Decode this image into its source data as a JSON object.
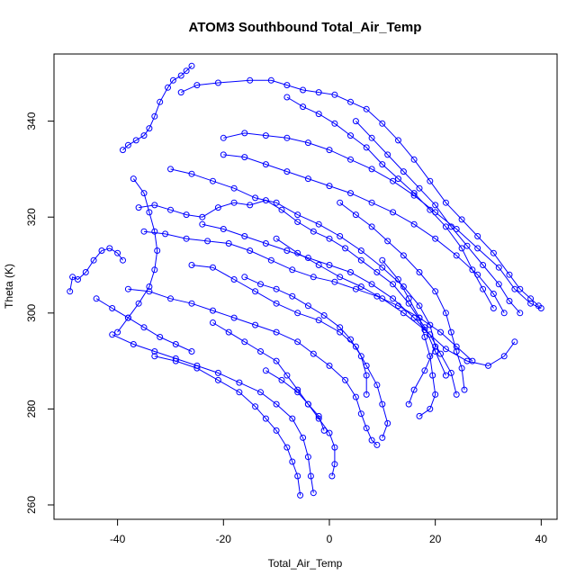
{
  "chart_data": {
    "type": "scatter",
    "title": "ATOM3 Southbound Total_Air_Temp",
    "xlabel": "Total_Air_Temp",
    "ylabel": "Theta (K)",
    "xlim": [
      -52,
      43
    ],
    "ylim": [
      257,
      354
    ],
    "x_ticks": [
      -40,
      -20,
      0,
      20,
      40
    ],
    "y_ticks": [
      260,
      280,
      300,
      320,
      340
    ],
    "grid": false,
    "legend": "none",
    "marker": "open-circle",
    "connected": true,
    "color": "#0000ff",
    "series": [
      {
        "points": [
          [
            -49,
            304.5
          ],
          [
            -48.5,
            307.5
          ],
          [
            -47.5,
            307
          ],
          [
            -46,
            308.5
          ],
          [
            -44.5,
            311
          ],
          [
            -43,
            313
          ],
          [
            -41.5,
            313.5
          ],
          [
            -40,
            312.5
          ],
          [
            -39,
            311
          ]
        ]
      },
      {
        "points": [
          [
            -39,
            334
          ],
          [
            -38,
            335
          ],
          [
            -36.5,
            336
          ],
          [
            -35,
            337
          ],
          [
            -34,
            338.5
          ],
          [
            -33,
            341
          ],
          [
            -32,
            344
          ],
          [
            -30.5,
            347
          ],
          [
            -29.5,
            348.5
          ],
          [
            -28,
            349.5
          ],
          [
            -27,
            350.5
          ],
          [
            -26,
            351.5
          ]
        ]
      },
      {
        "points": [
          [
            -28,
            346
          ],
          [
            -25,
            347.5
          ],
          [
            -21,
            348
          ],
          [
            -15,
            348.5
          ],
          [
            -11,
            348.5
          ],
          [
            -8,
            347.5
          ],
          [
            -5,
            346.5
          ],
          [
            -2,
            346
          ],
          [
            1,
            345.5
          ],
          [
            4,
            344
          ],
          [
            7,
            342.5
          ],
          [
            10,
            339.5
          ],
          [
            13,
            336
          ],
          [
            16,
            332
          ],
          [
            19,
            327.5
          ],
          [
            22,
            323
          ],
          [
            25,
            319.5
          ],
          [
            28,
            316
          ],
          [
            31,
            312.5
          ],
          [
            34,
            308
          ],
          [
            36,
            305
          ],
          [
            38,
            303
          ],
          [
            39.5,
            301.5
          ]
        ]
      },
      {
        "points": [
          [
            -20,
            336.5
          ],
          [
            -16,
            337.5
          ],
          [
            -12,
            337
          ],
          [
            -8,
            336.5
          ],
          [
            -4,
            335.5
          ],
          [
            0,
            334
          ],
          [
            4,
            332
          ],
          [
            8,
            330
          ],
          [
            12,
            327.5
          ],
          [
            16,
            324.5
          ],
          [
            20,
            321
          ],
          [
            24,
            317.5
          ],
          [
            28,
            313.5
          ],
          [
            32,
            309.5
          ],
          [
            35,
            305
          ],
          [
            38,
            302
          ],
          [
            40,
            301
          ]
        ]
      },
      {
        "points": [
          [
            -20,
            333
          ],
          [
            -16,
            332.5
          ],
          [
            -12,
            331
          ],
          [
            -8,
            329.5
          ],
          [
            -4,
            328
          ],
          [
            0,
            326.5
          ],
          [
            4,
            325
          ],
          [
            8,
            323
          ],
          [
            12,
            321
          ],
          [
            16,
            318.5
          ],
          [
            20,
            315.5
          ],
          [
            24,
            312
          ],
          [
            28,
            308
          ],
          [
            31,
            304
          ],
          [
            33,
            300
          ]
        ]
      },
      {
        "points": [
          [
            -36,
            322
          ],
          [
            -33,
            322.5
          ],
          [
            -30,
            321.5
          ],
          [
            -27,
            320.5
          ],
          [
            -24,
            320
          ],
          [
            -21,
            322
          ],
          [
            -18,
            323
          ],
          [
            -15,
            322.5
          ],
          [
            -12,
            323.5
          ],
          [
            -9,
            321.5
          ],
          [
            -6,
            319
          ],
          [
            -3,
            317
          ],
          [
            0,
            315.5
          ],
          [
            3,
            313.5
          ],
          [
            6,
            311
          ],
          [
            9,
            308.5
          ],
          [
            12,
            306
          ],
          [
            15,
            302
          ],
          [
            18,
            297
          ],
          [
            20,
            292
          ],
          [
            22,
            287
          ]
        ]
      },
      {
        "points": [
          [
            -35,
            317
          ],
          [
            -31,
            316.5
          ],
          [
            -27,
            315.5
          ],
          [
            -23,
            315
          ],
          [
            -19,
            314.5
          ],
          [
            -15,
            313
          ],
          [
            -11,
            311
          ],
          [
            -7,
            309
          ],
          [
            -3,
            307.5
          ],
          [
            1,
            306.5
          ],
          [
            5,
            305
          ],
          [
            9,
            303.5
          ],
          [
            13,
            301.5
          ],
          [
            17,
            299
          ],
          [
            21,
            296
          ],
          [
            24,
            293
          ],
          [
            27,
            290
          ]
        ]
      },
      {
        "points": [
          [
            -38,
            305
          ],
          [
            -34,
            304.5
          ],
          [
            -30,
            303
          ],
          [
            -26,
            302
          ],
          [
            -22,
            300.5
          ],
          [
            -18,
            299
          ],
          [
            -14,
            297.5
          ],
          [
            -10,
            296
          ],
          [
            -6,
            294
          ],
          [
            -3,
            291.5
          ],
          [
            0,
            289
          ],
          [
            3,
            286
          ],
          [
            5,
            282.5
          ],
          [
            6,
            279
          ],
          [
            7,
            276
          ],
          [
            8,
            273.5
          ],
          [
            9,
            272.5
          ]
        ]
      },
      {
        "points": [
          [
            -41,
            295.5
          ],
          [
            -37,
            293.5
          ],
          [
            -33,
            292
          ],
          [
            -29,
            290.5
          ],
          [
            -25,
            289
          ],
          [
            -21,
            287.5
          ],
          [
            -17,
            285.5
          ],
          [
            -13,
            283.5
          ],
          [
            -10,
            281
          ],
          [
            -7,
            278
          ],
          [
            -5,
            274
          ],
          [
            -4,
            270
          ],
          [
            -3.5,
            266
          ],
          [
            -3,
            262.5
          ]
        ]
      },
      {
        "points": [
          [
            -33,
            291
          ],
          [
            -29,
            290
          ],
          [
            -25,
            288.5
          ],
          [
            -21,
            286
          ],
          [
            -17,
            283.5
          ],
          [
            -14,
            280.5
          ],
          [
            -12,
            278
          ],
          [
            -10,
            275.5
          ],
          [
            -8,
            272
          ],
          [
            -7,
            269
          ],
          [
            -6,
            266
          ],
          [
            -5.5,
            262
          ]
        ]
      },
      {
        "points": [
          [
            -30,
            330
          ],
          [
            -26,
            329
          ],
          [
            -22,
            327.5
          ],
          [
            -18,
            326
          ],
          [
            -14,
            324
          ],
          [
            -10,
            323
          ],
          [
            -6,
            320.5
          ],
          [
            -2,
            318.5
          ],
          [
            2,
            316
          ],
          [
            6,
            313
          ],
          [
            10,
            309.5
          ],
          [
            14,
            305.5
          ],
          [
            17,
            301.5
          ],
          [
            19,
            297.5
          ],
          [
            20,
            293
          ],
          [
            18,
            288
          ],
          [
            16,
            284
          ],
          [
            15,
            281
          ]
        ]
      },
      {
        "points": [
          [
            -37,
            328
          ],
          [
            -35,
            325
          ],
          [
            -34,
            321
          ],
          [
            -33,
            317
          ],
          [
            -32.5,
            313
          ],
          [
            -33,
            309
          ],
          [
            -34,
            305.5
          ],
          [
            -36,
            302
          ],
          [
            -38,
            299
          ],
          [
            -40,
            296
          ]
        ]
      },
      {
        "points": [
          [
            -10,
            315.5
          ],
          [
            -6,
            312.5
          ],
          [
            -2,
            310
          ],
          [
            2,
            307.5
          ],
          [
            6,
            305.5
          ],
          [
            10,
            303
          ],
          [
            14,
            300
          ],
          [
            18,
            296.5
          ],
          [
            22,
            292.5
          ],
          [
            26,
            290
          ],
          [
            30,
            289
          ],
          [
            33,
            291
          ],
          [
            35,
            294
          ]
        ]
      },
      {
        "points": [
          [
            -26,
            310
          ],
          [
            -22,
            309.5
          ],
          [
            -18,
            307
          ],
          [
            -14,
            304.5
          ],
          [
            -10,
            302
          ],
          [
            -6,
            300
          ],
          [
            -2,
            298.5
          ],
          [
            2,
            296
          ],
          [
            5,
            293
          ],
          [
            7,
            289
          ],
          [
            9,
            285
          ],
          [
            10,
            281
          ],
          [
            11,
            277
          ],
          [
            10,
            274
          ]
        ]
      },
      {
        "points": [
          [
            -8,
            345
          ],
          [
            -5,
            343
          ],
          [
            -2,
            341.5
          ],
          [
            1,
            339.5
          ],
          [
            4,
            337
          ],
          [
            7,
            334.5
          ],
          [
            10,
            331
          ],
          [
            13,
            328
          ],
          [
            16,
            325
          ],
          [
            19,
            321.5
          ],
          [
            22,
            318
          ],
          [
            25,
            313.5
          ],
          [
            27,
            309
          ],
          [
            29,
            305
          ],
          [
            31,
            301
          ]
        ]
      },
      {
        "points": [
          [
            -24,
            318.5
          ],
          [
            -20,
            317.5
          ],
          [
            -16,
            316
          ],
          [
            -12,
            314.5
          ],
          [
            -8,
            313
          ],
          [
            -4,
            311.5
          ],
          [
            0,
            310
          ],
          [
            4,
            308.5
          ],
          [
            8,
            306
          ],
          [
            12,
            303
          ],
          [
            16,
            299
          ],
          [
            19,
            295.5
          ],
          [
            21,
            291.5
          ],
          [
            23,
            287.5
          ],
          [
            24,
            283
          ]
        ]
      },
      {
        "points": [
          [
            -16,
            307.5
          ],
          [
            -13,
            306
          ],
          [
            -10,
            305
          ],
          [
            -7,
            303.5
          ],
          [
            -4,
            301.5
          ],
          [
            -1,
            299.5
          ],
          [
            2,
            297
          ],
          [
            4,
            294.5
          ],
          [
            6,
            291
          ],
          [
            7,
            287
          ],
          [
            7,
            283
          ]
        ]
      },
      {
        "points": [
          [
            -22,
            298
          ],
          [
            -19,
            296
          ],
          [
            -16,
            294
          ],
          [
            -13,
            292
          ],
          [
            -10,
            290
          ],
          [
            -8,
            287
          ],
          [
            -6,
            284
          ],
          [
            -4,
            281
          ],
          [
            -2,
            278.5
          ],
          [
            -1,
            275.5
          ]
        ]
      },
      {
        "points": [
          [
            -12,
            288
          ],
          [
            -9,
            286
          ],
          [
            -6,
            283.5
          ],
          [
            -4,
            281
          ],
          [
            -2,
            278
          ],
          [
            0,
            275
          ],
          [
            1,
            272
          ],
          [
            1,
            268.5
          ],
          [
            0.5,
            266
          ]
        ]
      },
      {
        "points": [
          [
            5,
            340
          ],
          [
            8,
            336.5
          ],
          [
            11,
            333
          ],
          [
            14,
            329.5
          ],
          [
            17,
            326
          ],
          [
            20,
            322.5
          ],
          [
            23,
            318
          ],
          [
            26,
            314
          ],
          [
            29,
            310
          ],
          [
            32,
            306
          ],
          [
            34,
            302.5
          ],
          [
            36,
            300
          ]
        ]
      },
      {
        "points": [
          [
            2,
            323
          ],
          [
            5,
            320.5
          ],
          [
            8,
            318
          ],
          [
            11,
            315
          ],
          [
            14,
            312
          ],
          [
            17,
            308.5
          ],
          [
            20,
            304.5
          ],
          [
            22,
            300
          ],
          [
            23,
            296
          ],
          [
            24,
            292
          ],
          [
            25,
            288.5
          ],
          [
            25.5,
            284
          ]
        ]
      },
      {
        "points": [
          [
            -44,
            303
          ],
          [
            -41,
            301
          ],
          [
            -38,
            299
          ],
          [
            -35,
            297
          ],
          [
            -32,
            295
          ],
          [
            -29,
            293.5
          ],
          [
            -26,
            292
          ]
        ]
      },
      {
        "points": [
          [
            10,
            311
          ],
          [
            13,
            307
          ],
          [
            15,
            303
          ],
          [
            17,
            299
          ],
          [
            18,
            295
          ],
          [
            19,
            291
          ],
          [
            19.5,
            287
          ],
          [
            20,
            283
          ],
          [
            19,
            280
          ],
          [
            17,
            278.5
          ]
        ]
      }
    ]
  }
}
